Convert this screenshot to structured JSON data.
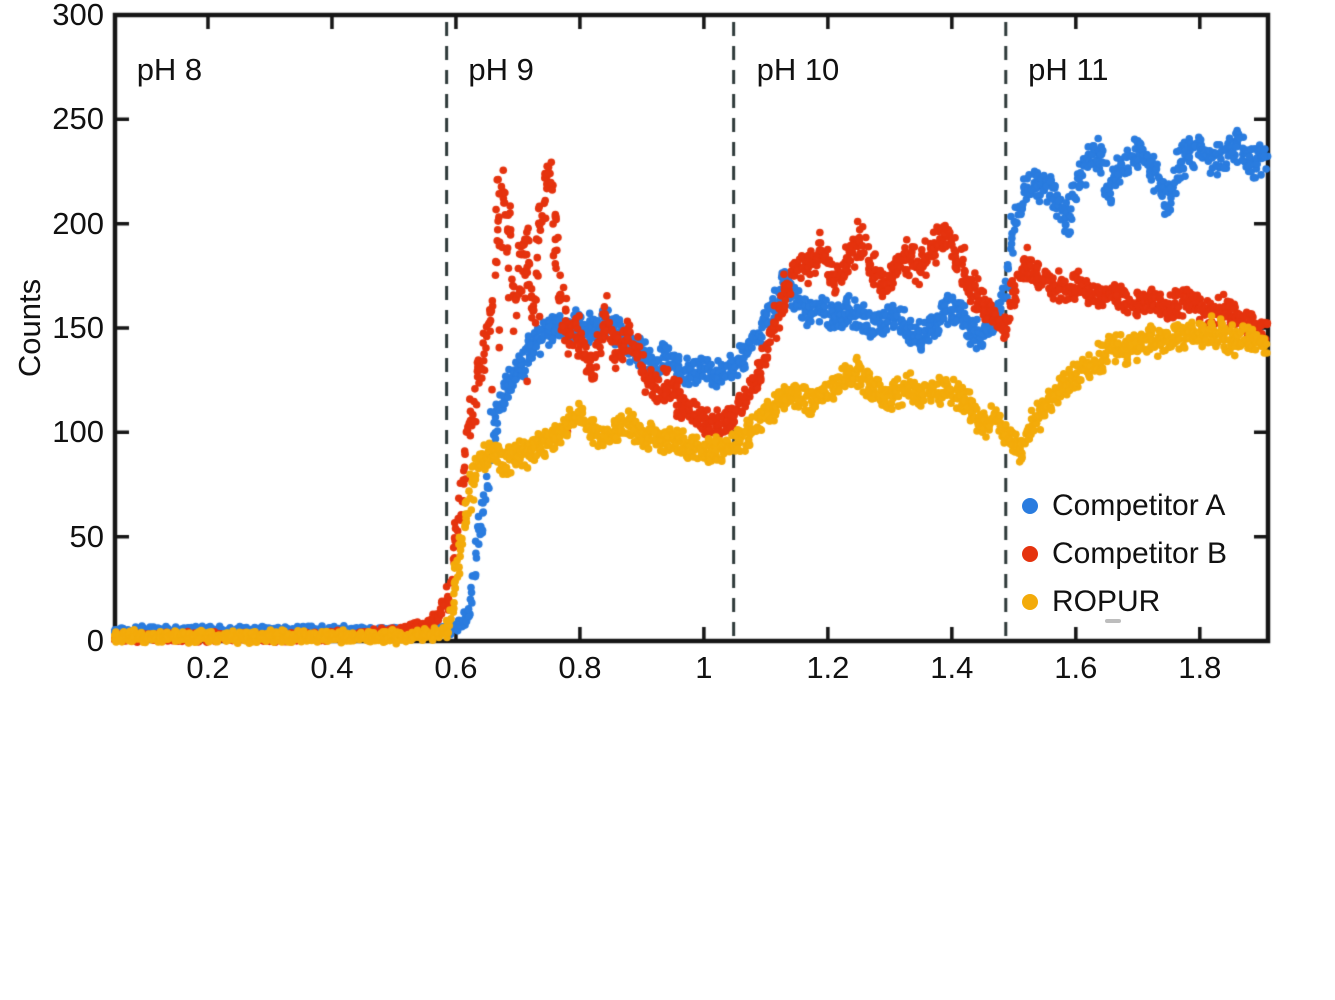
{
  "figure": {
    "background": "#ffffff",
    "text_color": "#111111",
    "axis_color": "#161616",
    "divider_color": "#2f3a3a"
  },
  "chart_data": {
    "type": "scatter",
    "title": "",
    "xlabel": "",
    "ylabel": "Counts",
    "xlim": [
      0.05,
      1.91
    ],
    "ylim": [
      0,
      300
    ],
    "grid": false,
    "x_tick_values": [
      0.2,
      0.4,
      0.6,
      0.8,
      1,
      1.2,
      1.4,
      1.6,
      1.8
    ],
    "x_tick_labels": [
      "0.2",
      "0.4",
      "0.6",
      "0.8",
      "1",
      "1.2",
      "1.4",
      "1.6",
      "1.8"
    ],
    "y_tick_values": [
      0,
      50,
      100,
      150,
      200,
      250,
      300
    ],
    "y_tick_labels": [
      "0",
      "50",
      "100",
      "150",
      "200",
      "250",
      "300"
    ],
    "region_dividers_x": [
      0.585,
      1.048,
      1.487
    ],
    "region_labels": [
      {
        "text": "pH 8",
        "x": 0.085
      },
      {
        "text": "pH 9",
        "x": 0.62
      },
      {
        "text": "pH 10",
        "x": 1.085
      },
      {
        "text": "pH 11",
        "x": 1.523
      }
    ],
    "legend": {
      "position": "lower right",
      "entries": [
        {
          "label": "Competitor A",
          "color": "#2a7cdf"
        },
        {
          "label": "Competitor B",
          "color": "#e5330e"
        },
        {
          "label": "ROPUR",
          "color": "#f3ab0a"
        }
      ]
    },
    "series": [
      {
        "name": "Competitor A",
        "color": "#2a7cdf",
        "marker": "circle",
        "trend": [
          [
            0.05,
            5,
            2.5
          ],
          [
            0.3,
            5,
            2.5
          ],
          [
            0.5,
            5,
            2.5
          ],
          [
            0.58,
            5,
            2.5
          ],
          [
            0.6,
            6,
            3
          ],
          [
            0.62,
            12,
            5
          ],
          [
            0.64,
            55,
            12
          ],
          [
            0.66,
            100,
            12
          ],
          [
            0.68,
            122,
            10
          ],
          [
            0.7,
            128,
            10
          ],
          [
            0.72,
            140,
            10
          ],
          [
            0.74,
            146,
            9
          ],
          [
            0.76,
            150,
            9
          ],
          [
            0.78,
            150,
            9
          ],
          [
            0.8,
            152,
            9
          ],
          [
            0.82,
            148,
            9
          ],
          [
            0.84,
            154,
            9
          ],
          [
            0.86,
            149,
            9
          ],
          [
            0.88,
            140,
            9
          ],
          [
            0.9,
            138,
            8
          ],
          [
            0.92,
            132,
            8
          ],
          [
            0.94,
            136,
            8
          ],
          [
            0.96,
            130,
            8
          ],
          [
            0.98,
            128,
            8
          ],
          [
            1,
            132,
            8
          ],
          [
            1.02,
            128,
            8
          ],
          [
            1.048,
            130,
            9
          ],
          [
            1.07,
            138,
            9
          ],
          [
            1.09,
            148,
            9
          ],
          [
            1.11,
            158,
            10
          ],
          [
            1.13,
            170,
            10
          ],
          [
            1.15,
            162,
            9
          ],
          [
            1.17,
            157,
            9
          ],
          [
            1.19,
            161,
            9
          ],
          [
            1.21,
            154,
            9
          ],
          [
            1.23,
            159,
            9
          ],
          [
            1.25,
            157,
            9
          ],
          [
            1.27,
            149,
            9
          ],
          [
            1.29,
            154,
            9
          ],
          [
            1.31,
            155,
            9
          ],
          [
            1.33,
            148,
            9
          ],
          [
            1.35,
            145,
            9
          ],
          [
            1.37,
            152,
            9
          ],
          [
            1.39,
            160,
            9
          ],
          [
            1.41,
            158,
            9
          ],
          [
            1.43,
            148,
            8
          ],
          [
            1.45,
            147,
            8
          ],
          [
            1.47,
            155,
            9
          ],
          [
            1.487,
            168,
            10
          ],
          [
            1.5,
            200,
            12
          ],
          [
            1.52,
            216,
            10
          ],
          [
            1.54,
            218,
            9
          ],
          [
            1.56,
            214,
            9
          ],
          [
            1.585,
            200,
            9
          ],
          [
            1.61,
            226,
            10
          ],
          [
            1.64,
            234,
            10
          ],
          [
            1.655,
            214,
            10
          ],
          [
            1.67,
            228,
            10
          ],
          [
            1.7,
            234,
            10
          ],
          [
            1.72,
            228,
            10
          ],
          [
            1.75,
            210,
            10
          ],
          [
            1.77,
            230,
            10
          ],
          [
            1.8,
            237,
            10
          ],
          [
            1.83,
            229,
            10
          ],
          [
            1.86,
            239,
            10
          ],
          [
            1.88,
            228,
            10
          ],
          [
            1.908,
            233,
            10
          ]
        ]
      },
      {
        "name": "Competitor B",
        "color": "#e5330e",
        "marker": "circle",
        "low_tail": {
          "range": [
            0.655,
            0.785
          ],
          "depth": 60,
          "prob": 0.22
        },
        "trend": [
          [
            0.05,
            2,
            3
          ],
          [
            0.3,
            2,
            3
          ],
          [
            0.45,
            3,
            3
          ],
          [
            0.5,
            4,
            3
          ],
          [
            0.53,
            6,
            3
          ],
          [
            0.55,
            8,
            3
          ],
          [
            0.57,
            11,
            3
          ],
          [
            0.585,
            18,
            5
          ],
          [
            0.6,
            48,
            10
          ],
          [
            0.615,
            85,
            12
          ],
          [
            0.63,
            118,
            12
          ],
          [
            0.645,
            135,
            12
          ],
          [
            0.66,
            165,
            15
          ],
          [
            0.67,
            205,
            18
          ],
          [
            0.675,
            215,
            15
          ],
          [
            0.685,
            195,
            18
          ],
          [
            0.695,
            160,
            20
          ],
          [
            0.705,
            180,
            18
          ],
          [
            0.715,
            192,
            15
          ],
          [
            0.725,
            160,
            18
          ],
          [
            0.735,
            195,
            18
          ],
          [
            0.745,
            225,
            12
          ],
          [
            0.75,
            228,
            10
          ],
          [
            0.76,
            195,
            18
          ],
          [
            0.77,
            160,
            18
          ],
          [
            0.78,
            150,
            14
          ],
          [
            0.8,
            145,
            14
          ],
          [
            0.82,
            130,
            12
          ],
          [
            0.84,
            155,
            12
          ],
          [
            0.86,
            140,
            12
          ],
          [
            0.88,
            150,
            10
          ],
          [
            0.9,
            130,
            10
          ],
          [
            0.92,
            120,
            10
          ],
          [
            0.94,
            125,
            10
          ],
          [
            0.96,
            115,
            9
          ],
          [
            0.98,
            110,
            9
          ],
          [
            1,
            105,
            8
          ],
          [
            1.02,
            103,
            8
          ],
          [
            1.048,
            107,
            8
          ],
          [
            1.07,
            115,
            9
          ],
          [
            1.09,
            128,
            10
          ],
          [
            1.11,
            148,
            10
          ],
          [
            1.13,
            168,
            10
          ],
          [
            1.15,
            183,
            10
          ],
          [
            1.17,
            178,
            10
          ],
          [
            1.19,
            188,
            10
          ],
          [
            1.21,
            173,
            10
          ],
          [
            1.23,
            183,
            10
          ],
          [
            1.25,
            193,
            10
          ],
          [
            1.27,
            178,
            10
          ],
          [
            1.29,
            170,
            10
          ],
          [
            1.31,
            178,
            10
          ],
          [
            1.33,
            184,
            10
          ],
          [
            1.35,
            179,
            10
          ],
          [
            1.37,
            190,
            10
          ],
          [
            1.39,
            193,
            10
          ],
          [
            1.41,
            183,
            10
          ],
          [
            1.43,
            170,
            10
          ],
          [
            1.45,
            163,
            9
          ],
          [
            1.47,
            152,
            9
          ],
          [
            1.487,
            150,
            9
          ],
          [
            1.5,
            168,
            9
          ],
          [
            1.52,
            180,
            9
          ],
          [
            1.54,
            177,
            9
          ],
          [
            1.56,
            170,
            9
          ],
          [
            1.58,
            169,
            8
          ],
          [
            1.6,
            171,
            8
          ],
          [
            1.62,
            167,
            8
          ],
          [
            1.64,
            164,
            8
          ],
          [
            1.66,
            167,
            8
          ],
          [
            1.68,
            164,
            8
          ],
          [
            1.7,
            161,
            8
          ],
          [
            1.72,
            164,
            8
          ],
          [
            1.74,
            159,
            8
          ],
          [
            1.76,
            161,
            8
          ],
          [
            1.78,
            164,
            8
          ],
          [
            1.8,
            159,
            8
          ],
          [
            1.82,
            157,
            8
          ],
          [
            1.84,
            159,
            8
          ],
          [
            1.86,
            154,
            8
          ],
          [
            1.88,
            151,
            8
          ],
          [
            1.908,
            150,
            8
          ]
        ]
      },
      {
        "name": "ROPUR",
        "color": "#f3ab0a",
        "marker": "circle",
        "trend": [
          [
            0.05,
            2,
            3.5
          ],
          [
            0.3,
            2,
            3.5
          ],
          [
            0.5,
            2,
            3.5
          ],
          [
            0.575,
            3,
            3.5
          ],
          [
            0.59,
            8,
            5
          ],
          [
            0.6,
            30,
            9
          ],
          [
            0.615,
            60,
            9
          ],
          [
            0.63,
            80,
            8
          ],
          [
            0.645,
            87,
            8
          ],
          [
            0.66,
            89,
            8
          ],
          [
            0.68,
            86,
            8
          ],
          [
            0.7,
            89,
            8
          ],
          [
            0.72,
            91,
            8
          ],
          [
            0.74,
            94,
            8
          ],
          [
            0.76,
            99,
            8
          ],
          [
            0.78,
            103,
            8
          ],
          [
            0.8,
            107,
            8
          ],
          [
            0.82,
            101,
            8
          ],
          [
            0.84,
            99,
            8
          ],
          [
            0.86,
            101,
            8
          ],
          [
            0.88,
            104,
            8
          ],
          [
            0.9,
            97,
            8
          ],
          [
            0.92,
            99,
            8
          ],
          [
            0.94,
            95,
            8
          ],
          [
            0.96,
            97,
            8
          ],
          [
            0.98,
            93,
            8
          ],
          [
            1,
            92,
            8
          ],
          [
            1.02,
            91,
            8
          ],
          [
            1.048,
            93,
            8
          ],
          [
            1.07,
            99,
            8
          ],
          [
            1.09,
            106,
            8
          ],
          [
            1.11,
            111,
            8
          ],
          [
            1.13,
            117,
            8
          ],
          [
            1.15,
            119,
            8
          ],
          [
            1.17,
            114,
            8
          ],
          [
            1.19,
            117,
            8
          ],
          [
            1.21,
            121,
            8
          ],
          [
            1.23,
            127,
            8
          ],
          [
            1.25,
            129,
            8
          ],
          [
            1.27,
            121,
            8
          ],
          [
            1.29,
            117,
            8
          ],
          [
            1.31,
            119,
            8
          ],
          [
            1.33,
            121,
            8
          ],
          [
            1.35,
            117,
            8
          ],
          [
            1.37,
            119,
            8
          ],
          [
            1.39,
            121,
            8
          ],
          [
            1.41,
            117,
            8
          ],
          [
            1.43,
            111,
            8
          ],
          [
            1.45,
            104,
            8
          ],
          [
            1.47,
            107,
            8
          ],
          [
            1.487,
            100,
            8
          ],
          [
            1.5,
            95,
            8
          ],
          [
            1.51,
            92,
            8
          ],
          [
            1.53,
            103,
            8
          ],
          [
            1.55,
            111,
            8
          ],
          [
            1.57,
            118,
            8
          ],
          [
            1.6,
            128,
            8
          ],
          [
            1.62,
            131,
            8
          ],
          [
            1.64,
            136,
            8
          ],
          [
            1.66,
            141,
            8
          ],
          [
            1.68,
            139,
            8
          ],
          [
            1.7,
            142,
            8
          ],
          [
            1.72,
            145,
            8
          ],
          [
            1.74,
            143,
            8
          ],
          [
            1.76,
            146,
            8
          ],
          [
            1.78,
            148,
            8
          ],
          [
            1.8,
            146,
            8
          ],
          [
            1.82,
            148,
            8
          ],
          [
            1.84,
            146,
            8
          ],
          [
            1.86,
            143,
            8
          ],
          [
            1.88,
            145,
            8
          ],
          [
            1.908,
            142,
            8
          ]
        ]
      }
    ]
  }
}
